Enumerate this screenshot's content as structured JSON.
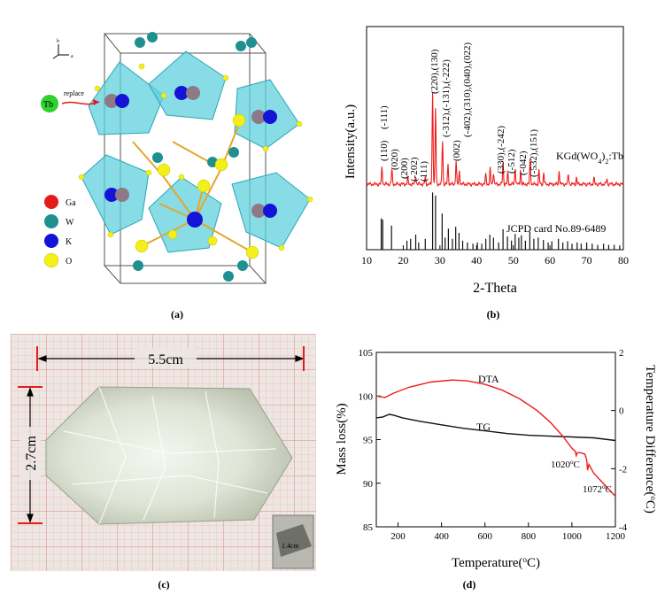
{
  "captions": [
    "(a)",
    "(b)",
    "(c)",
    "(d)"
  ],
  "crystal": {
    "axis_b": "b",
    "axis_a": "a",
    "replace_label": "replace",
    "tb_label": "Tb",
    "legend": [
      {
        "label": "Ga",
        "color": "#e31b1b"
      },
      {
        "label": "W",
        "color": "#1f8f8f"
      },
      {
        "label": "K",
        "color": "#1414d6"
      },
      {
        "label": "O",
        "color": "#f2ef1a"
      }
    ]
  },
  "photo": {
    "length_label": "5.5cm",
    "height_label": "2.7cm",
    "inset_label": "1.4cm"
  },
  "chart_data": [
    {
      "type": "line",
      "xlabel": "2-Theta",
      "ylabel": "Intensity(a.u.)",
      "xlim": [
        10,
        80
      ],
      "xticks": [
        10,
        20,
        30,
        40,
        50,
        60,
        70,
        80
      ],
      "series": [
        {
          "name": "KGd(WO4)2:Tb",
          "color": "#ee1c1c",
          "peaks": [
            [
              14.2,
              0.18
            ],
            [
              16.9,
              0.15
            ],
            [
              21.2,
              0.07
            ],
            [
              23.4,
              0.09
            ],
            [
              26.0,
              0.07
            ],
            [
              28.0,
              0.95
            ],
            [
              28.8,
              0.78
            ],
            [
              30.7,
              0.45
            ],
            [
              32.2,
              0.2
            ],
            [
              34.4,
              0.24
            ],
            [
              35.3,
              0.14
            ],
            [
              42.5,
              0.1
            ],
            [
              43.7,
              0.16
            ],
            [
              44.6,
              0.12
            ],
            [
              47.2,
              0.22
            ],
            [
              48.5,
              0.12
            ],
            [
              50.5,
              0.17
            ],
            [
              52.0,
              0.15
            ],
            [
              54.6,
              0.26
            ],
            [
              57.0,
              0.14
            ],
            [
              58.3,
              0.12
            ],
            [
              62.5,
              0.14
            ],
            [
              65.0,
              0.1
            ],
            [
              67.2,
              0.07
            ],
            [
              72.0,
              0.06
            ],
            [
              75.5,
              0.05
            ]
          ]
        },
        {
          "name": "JCPD card No.89-6489",
          "color": "#111111",
          "sticks": [
            [
              14.0,
              0.52
            ],
            [
              14.4,
              0.5
            ],
            [
              16.8,
              0.4
            ],
            [
              21.0,
              0.15
            ],
            [
              22.0,
              0.18
            ],
            [
              23.4,
              0.25
            ],
            [
              24.2,
              0.12
            ],
            [
              26.0,
              0.18
            ],
            [
              28.0,
              0.95
            ],
            [
              28.8,
              0.9
            ],
            [
              30.6,
              0.6
            ],
            [
              31.4,
              0.2
            ],
            [
              32.3,
              0.35
            ],
            [
              33.4,
              0.18
            ],
            [
              34.3,
              0.38
            ],
            [
              35.2,
              0.28
            ],
            [
              36.2,
              0.15
            ],
            [
              37.5,
              0.12
            ],
            [
              39.0,
              0.1
            ],
            [
              40.2,
              0.12
            ],
            [
              41.4,
              0.1
            ],
            [
              42.5,
              0.18
            ],
            [
              43.6,
              0.25
            ],
            [
              44.6,
              0.2
            ],
            [
              46.0,
              0.12
            ],
            [
              47.2,
              0.34
            ],
            [
              48.4,
              0.22
            ],
            [
              49.5,
              0.15
            ],
            [
              50.5,
              0.26
            ],
            [
              51.5,
              0.2
            ],
            [
              52.2,
              0.24
            ],
            [
              53.3,
              0.15
            ],
            [
              54.5,
              0.3
            ],
            [
              55.6,
              0.18
            ],
            [
              56.8,
              0.2
            ],
            [
              58.2,
              0.16
            ],
            [
              59.5,
              0.12
            ],
            [
              60.5,
              0.14
            ],
            [
              62.3,
              0.18
            ],
            [
              63.5,
              0.12
            ],
            [
              64.8,
              0.14
            ],
            [
              66.0,
              0.1
            ],
            [
              67.4,
              0.12
            ],
            [
              68.5,
              0.1
            ],
            [
              70.0,
              0.12
            ],
            [
              71.5,
              0.1
            ],
            [
              73.0,
              0.08
            ],
            [
              74.6,
              0.1
            ],
            [
              76.0,
              0.08
            ],
            [
              77.5,
              0.08
            ],
            [
              79.0,
              0.07
            ]
          ]
        }
      ],
      "labels": {
        "sample": "KGd(WO",
        "sample_sub": "4",
        "sample_close": ")",
        "sample_sub2": "2",
        "sample_tail": ":Tb",
        "card": "JCPD card No.89-6489"
      },
      "annotations": [
        "(110)",
        "(-111)",
        "(020)",
        "(200)",
        "(-202)",
        "(111)",
        "(220),(130)",
        "(-312),(-131),(-222)",
        "(002)",
        "(-402),(310),(040),(022)",
        "(330),(-242)",
        "(-512)",
        "(-042)",
        "(-532),(151)"
      ]
    },
    {
      "type": "line",
      "xlabel": "Temperature(°C)",
      "ylabel": "Mass loss(%)",
      "y2label": "Temperature Difference(°C)",
      "xlim": [
        100,
        1200
      ],
      "xticks": [
        200,
        400,
        600,
        800,
        1000,
        1200
      ],
      "ylim": [
        85,
        105
      ],
      "yticks": [
        85,
        90,
        95,
        100,
        105
      ],
      "y2lim": [
        -4,
        2
      ],
      "y2ticks": [
        -4,
        -2,
        0,
        2
      ],
      "series": [
        {
          "name": "TG",
          "axis": "left",
          "color": "#111111",
          "points": [
            [
              100,
              97.5
            ],
            [
              130,
              97.6
            ],
            [
              160,
              97.9
            ],
            [
              180,
              97.8
            ],
            [
              220,
              97.5
            ],
            [
              300,
              97.1
            ],
            [
              400,
              96.7
            ],
            [
              500,
              96.3
            ],
            [
              600,
              96.0
            ],
            [
              700,
              95.7
            ],
            [
              800,
              95.5
            ],
            [
              900,
              95.4
            ],
            [
              1000,
              95.3
            ],
            [
              1100,
              95.2
            ],
            [
              1200,
              94.9
            ]
          ]
        },
        {
          "name": "DTA",
          "axis": "right",
          "color": "#ee1c1c",
          "points": [
            [
              100,
              0.5
            ],
            [
              140,
              0.45
            ],
            [
              180,
              0.6
            ],
            [
              250,
              0.8
            ],
            [
              350,
              0.98
            ],
            [
              450,
              1.05
            ],
            [
              520,
              1.02
            ],
            [
              600,
              0.9
            ],
            [
              680,
              0.7
            ],
            [
              760,
              0.4
            ],
            [
              840,
              0.0
            ],
            [
              900,
              -0.4
            ],
            [
              960,
              -0.9
            ],
            [
              1000,
              -1.3
            ],
            [
              1015,
              -1.4
            ],
            [
              1020,
              -1.55
            ],
            [
              1025,
              -1.45
            ],
            [
              1040,
              -1.45
            ],
            [
              1060,
              -1.5
            ],
            [
              1068,
              -1.7
            ],
            [
              1072,
              -2.05
            ],
            [
              1078,
              -1.85
            ],
            [
              1100,
              -2.15
            ],
            [
              1150,
              -2.55
            ],
            [
              1200,
              -2.95
            ]
          ]
        }
      ],
      "annotations": [
        "DTA",
        "TG",
        "1020°C",
        "1072°C"
      ]
    }
  ]
}
